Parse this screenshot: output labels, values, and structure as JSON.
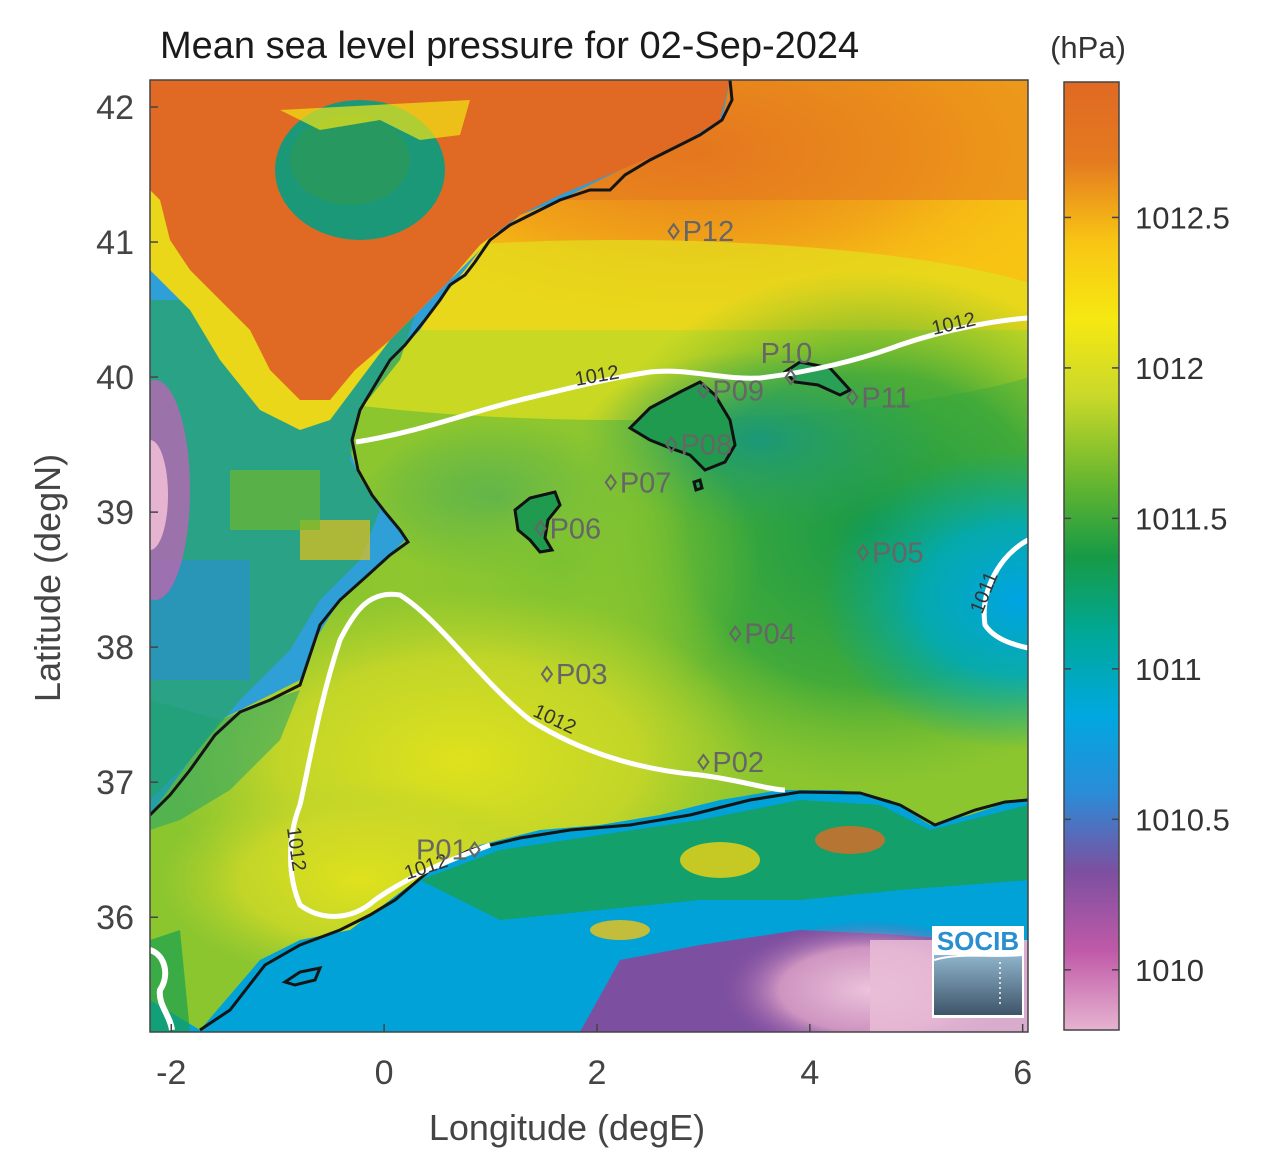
{
  "title": "Mean sea level pressure for 02-Sep-2024",
  "colorbar": {
    "unit": "(hPa)",
    "vmin": 1009.8,
    "vmax": 1012.95,
    "ticks": [
      {
        "value": 1012.5,
        "label": "1012.5"
      },
      {
        "value": 1012,
        "label": "1012"
      },
      {
        "value": 1011.5,
        "label": "1011.5"
      },
      {
        "value": 1011,
        "label": "1011"
      },
      {
        "value": 1010.5,
        "label": "1010.5"
      },
      {
        "value": 1010,
        "label": "1010"
      }
    ],
    "colors": [
      "#e6b3d0",
      "#c05aa8",
      "#7d4fa0",
      "#2a8cd8",
      "#00a8e0",
      "#00a898",
      "#179a45",
      "#6cb82e",
      "#c8d82a",
      "#f6e812",
      "#f8c414",
      "#e47a20",
      "#e06a24"
    ]
  },
  "axes": {
    "xlabel": "Longitude (degE)",
    "ylabel": "Latitude (degN)",
    "xlim": [
      -2.2,
      6.05
    ],
    "ylim": [
      35.15,
      42.2
    ],
    "xticks": [
      {
        "value": -2,
        "label": "-2"
      },
      {
        "value": 0,
        "label": "0"
      },
      {
        "value": 2,
        "label": "2"
      },
      {
        "value": 4,
        "label": "4"
      },
      {
        "value": 6,
        "label": "6"
      }
    ],
    "yticks": [
      {
        "value": 42,
        "label": "42"
      },
      {
        "value": 41,
        "label": "41"
      },
      {
        "value": 40,
        "label": "40"
      },
      {
        "value": 39,
        "label": "39"
      },
      {
        "value": 38,
        "label": "38"
      },
      {
        "value": 37,
        "label": "37"
      },
      {
        "value": 36,
        "label": "36"
      }
    ]
  },
  "stations": [
    {
      "label": "P01",
      "lon": 0.85,
      "lat": 36.5
    },
    {
      "label": "P02",
      "lon": 3.0,
      "lat": 37.15
    },
    {
      "label": "P03",
      "lon": 1.53,
      "lat": 37.8
    },
    {
      "label": "P04",
      "lon": 3.3,
      "lat": 38.1
    },
    {
      "label": "P05",
      "lon": 4.5,
      "lat": 38.7
    },
    {
      "label": "P06",
      "lon": 1.47,
      "lat": 38.88
    },
    {
      "label": "P07",
      "lon": 2.13,
      "lat": 39.22
    },
    {
      "label": "P08",
      "lon": 2.7,
      "lat": 39.5
    },
    {
      "label": "P09",
      "lon": 3.0,
      "lat": 39.9
    },
    {
      "label": "P10",
      "lon": 3.82,
      "lat": 40.0
    },
    {
      "label": "P11",
      "lon": 4.4,
      "lat": 39.85
    },
    {
      "label": "P12",
      "lon": 2.72,
      "lat": 41.08
    }
  ],
  "contour_labels": [
    "1012",
    "1012",
    "1012",
    "1012",
    "1012",
    "1011"
  ],
  "logo": "SOCIB"
}
